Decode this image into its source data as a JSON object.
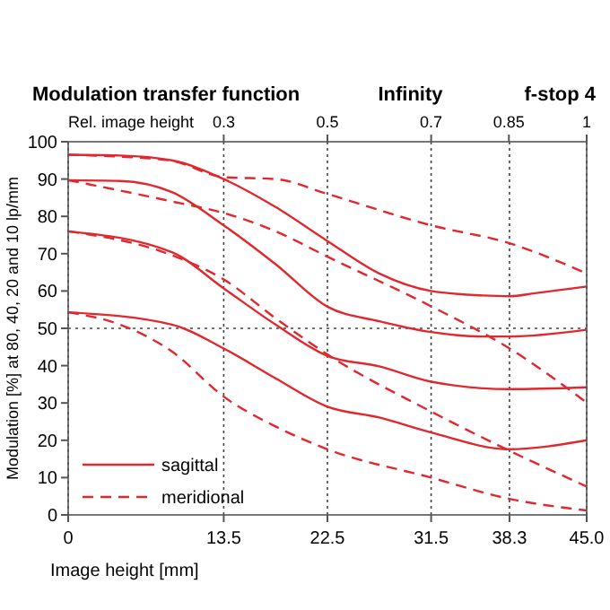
{
  "chart_data": {
    "type": "line",
    "title": "Modulation transfer function",
    "annotations": [
      "Infinity",
      "f-stop 4"
    ],
    "xlabel": "Image height [mm]",
    "ylabel": "Modulation [%] at 80, 40, 20 and 10 lp/mm",
    "x2label": "Rel. image height",
    "xlim": [
      0,
      45
    ],
    "xticks": [
      0,
      13.5,
      22.5,
      31.5,
      38.3,
      {
        "value": 45,
        "label": "45.0"
      }
    ],
    "x2lim": [
      0,
      1
    ],
    "x2ticks": [
      0.3,
      0.5,
      0.7,
      0.85,
      1
    ],
    "ylim": [
      0,
      100
    ],
    "yticks": [
      0,
      10,
      20,
      30,
      40,
      50,
      60,
      70,
      80,
      90,
      100
    ],
    "grid": "x",
    "ref_lines": [
      {
        "axis": "y",
        "value": 50,
        "line_style": "dotted"
      }
    ],
    "legend": "bottom left",
    "series": [
      {
        "name": "sagittal",
        "color": "#e0282e",
        "line_style": "solid",
        "x": [
          0,
          4.5,
          9,
          13.5,
          18,
          22.5,
          27,
          31.5,
          36,
          38.3,
          40.5,
          45
        ],
        "values": [
          96.5,
          96.3,
          95,
          90,
          82.5,
          73.4,
          64.7,
          60,
          58.8,
          58.6,
          59.4,
          61.2
        ]
      },
      {
        "name": "meridional",
        "color": "#e0282e",
        "line_style": "dashed",
        "x": [
          0,
          4.5,
          9,
          13.5,
          18,
          22.5,
          31.5,
          38.3,
          45
        ],
        "values": [
          96.5,
          96,
          94.9,
          90.5,
          90,
          86,
          77.6,
          72.8,
          64.7
        ]
      },
      {
        "color": "#e0282e",
        "line_style": "solid",
        "x": [
          0,
          4.5,
          9,
          13.5,
          18,
          22.5,
          27,
          31.5,
          36,
          38.3,
          45
        ],
        "values": [
          89.7,
          89.5,
          86.5,
          77.6,
          67.2,
          55.8,
          51.9,
          49,
          47.8,
          47.8,
          49.6
        ]
      },
      {
        "color": "#e0282e",
        "line_style": "dashed",
        "x": [
          0,
          9,
          13.5,
          18,
          22.5,
          31.5,
          38.3,
          45
        ],
        "values": [
          89.7,
          84,
          80.9,
          76,
          69.2,
          55.9,
          44.6,
          30.1
        ]
      },
      {
        "color": "#e0282e",
        "line_style": "solid",
        "x": [
          0,
          9,
          13.5,
          18,
          22.5,
          27,
          31.5,
          38.3,
          45
        ],
        "values": [
          76,
          70.4,
          60.7,
          51,
          42.6,
          39.8,
          35.7,
          33.7,
          34.2
        ]
      },
      {
        "color": "#e0282e",
        "line_style": "dashed",
        "x": [
          0,
          9,
          13.5,
          18,
          22.5,
          31.5,
          38.3,
          45
        ],
        "values": [
          76,
          69.6,
          63.1,
          52.7,
          43,
          27.7,
          17.2,
          7.6
        ]
      },
      {
        "color": "#e0282e",
        "line_style": "solid",
        "x": [
          0,
          9,
          13.5,
          18,
          22.5,
          27,
          31.5,
          38.3,
          45
        ],
        "values": [
          54.3,
          51,
          44.6,
          36.6,
          29,
          26.1,
          22.1,
          17.6,
          20
        ]
      },
      {
        "color": "#e0282e",
        "line_style": "dashed",
        "x": [
          0,
          4.5,
          9,
          13.5,
          18,
          22.5,
          31.5,
          38.3,
          45
        ],
        "values": [
          54.3,
          51,
          43.8,
          31.7,
          23.7,
          17.6,
          10,
          4.3,
          1.2
        ]
      }
    ]
  }
}
